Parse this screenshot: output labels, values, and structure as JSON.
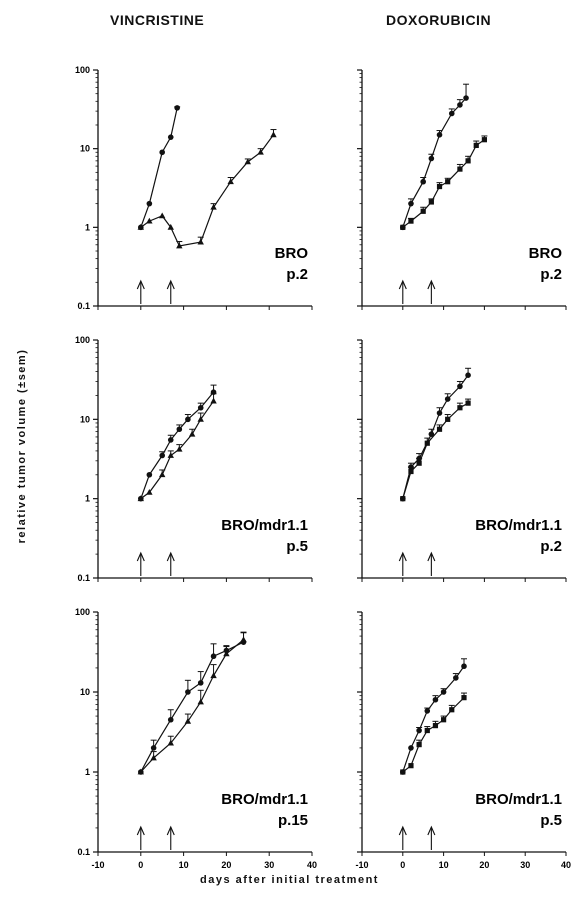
{
  "figure": {
    "titles": [
      "VINCRISTINE",
      "DOXORUBICIN"
    ],
    "ylabel": "relative tumor volume (±sem)",
    "xlabel": "days after initial treatment"
  },
  "chart_data": [
    {
      "type": "line",
      "panel": "vincristine-bro-p2",
      "drug": "VINCRISTINE",
      "label_lines": [
        "BRO",
        "p.2"
      ],
      "y_scale": "log",
      "ylim": [
        0.1,
        100
      ],
      "xlim": [
        -10,
        40
      ],
      "y_ticks": [
        "0.1",
        "1",
        "10",
        "100"
      ],
      "x_ticks": [],
      "treatment_days": [
        0,
        7
      ],
      "series": [
        {
          "marker": "circle",
          "x": [
            0,
            2,
            5,
            7,
            8.5
          ],
          "y": [
            1,
            2,
            9,
            14,
            33
          ],
          "err": [
            0,
            0,
            0,
            0,
            1
          ]
        },
        {
          "marker": "triangle",
          "x": [
            0,
            2,
            5,
            7,
            9,
            14,
            17,
            21,
            25,
            28,
            31
          ],
          "y": [
            1,
            1.2,
            1.4,
            1.0,
            0.58,
            0.65,
            1.8,
            3.8,
            6.8,
            9,
            15
          ],
          "err": [
            0,
            0,
            0,
            0,
            0.08,
            0.1,
            0.2,
            0.5,
            0.6,
            1,
            2.5
          ]
        }
      ]
    },
    {
      "type": "line",
      "panel": "doxorubicin-bro-p2",
      "drug": "DOXORUBICIN",
      "label_lines": [
        "BRO",
        "p.2"
      ],
      "y_scale": "log",
      "ylim": [
        0.1,
        100
      ],
      "xlim": [
        -10,
        40
      ],
      "y_ticks": [],
      "x_ticks": [],
      "treatment_days": [
        0,
        7
      ],
      "series": [
        {
          "marker": "circle",
          "x": [
            0,
            2,
            5,
            7,
            9,
            12,
            14,
            15.5
          ],
          "y": [
            1,
            2,
            3.8,
            7.5,
            15,
            28,
            36,
            44
          ],
          "err": [
            0,
            0.3,
            0.5,
            1,
            2,
            4,
            6,
            22
          ]
        },
        {
          "marker": "square",
          "x": [
            0,
            2,
            5,
            7,
            9,
            11,
            14,
            16,
            18,
            20
          ],
          "y": [
            1,
            1.2,
            1.6,
            2.1,
            3.3,
            3.8,
            5.5,
            7,
            11,
            13
          ],
          "err": [
            0,
            0.1,
            0.2,
            0.2,
            0.4,
            0.4,
            0.8,
            1,
            1.5,
            1.5
          ]
        }
      ]
    },
    {
      "type": "line",
      "panel": "vincristine-bro-mdr11-p5",
      "drug": "VINCRISTINE",
      "label_lines": [
        "BRO/mdr1.1",
        "p.5"
      ],
      "y_scale": "log",
      "ylim": [
        0.1,
        100
      ],
      "xlim": [
        -10,
        40
      ],
      "y_ticks": [
        "0.1",
        "1",
        "10",
        "100"
      ],
      "x_ticks": [],
      "treatment_days": [
        0,
        7
      ],
      "series": [
        {
          "marker": "circle",
          "x": [
            0,
            2,
            5,
            7,
            9,
            11,
            14,
            17
          ],
          "y": [
            1,
            2,
            3.5,
            5.5,
            7.5,
            10,
            14,
            22
          ],
          "err": [
            0,
            0,
            0.4,
            0.8,
            1,
            1.5,
            2,
            5
          ]
        },
        {
          "marker": "triangle",
          "x": [
            0,
            2,
            5,
            7,
            9,
            12,
            14,
            17
          ],
          "y": [
            1,
            1.2,
            2,
            3.5,
            4.2,
            6.5,
            10,
            17
          ],
          "err": [
            0,
            0,
            0.3,
            0.5,
            0.6,
            1,
            2,
            4
          ]
        }
      ]
    },
    {
      "type": "line",
      "panel": "doxorubicin-bro-mdr11-p2",
      "drug": "DOXORUBICIN",
      "label_lines": [
        "BRO/mdr1.1",
        "p.2"
      ],
      "y_scale": "log",
      "ylim": [
        0.1,
        100
      ],
      "xlim": [
        -10,
        40
      ],
      "y_ticks": [],
      "x_ticks": [],
      "treatment_days": [
        0,
        7
      ],
      "series": [
        {
          "marker": "circle",
          "x": [
            0,
            2,
            4,
            7,
            9,
            11,
            14,
            16
          ],
          "y": [
            1,
            2.5,
            3.2,
            6.5,
            12,
            18,
            26,
            36
          ],
          "err": [
            0,
            0.3,
            0.5,
            1,
            2,
            3,
            4,
            8
          ]
        },
        {
          "marker": "square",
          "x": [
            0,
            2,
            4,
            6,
            9,
            11,
            14,
            16
          ],
          "y": [
            1,
            2.2,
            2.8,
            5,
            7.5,
            10,
            14,
            16
          ],
          "err": [
            0,
            0.3,
            0.4,
            0.8,
            1,
            1.5,
            2,
            2
          ]
        }
      ]
    },
    {
      "type": "line",
      "panel": "vincristine-bro-mdr11-p15",
      "drug": "VINCRISTINE",
      "label_lines": [
        "BRO/mdr1.1",
        "p.15"
      ],
      "y_scale": "log",
      "ylim": [
        0.1,
        100
      ],
      "xlim": [
        -10,
        40
      ],
      "y_ticks": [
        "0.1",
        "1",
        "10",
        "100"
      ],
      "x_ticks": [
        "-10",
        "0",
        "10",
        "20",
        "30",
        "40"
      ],
      "treatment_days": [
        0,
        7
      ],
      "series": [
        {
          "marker": "circle",
          "x": [
            0,
            3,
            7,
            11,
            14,
            17,
            20,
            24
          ],
          "y": [
            1,
            2,
            4.5,
            10,
            13,
            28,
            33,
            42
          ],
          "err": [
            0,
            0.5,
            1.5,
            4,
            5,
            12,
            5,
            14
          ]
        },
        {
          "marker": "triangle",
          "x": [
            0,
            3,
            7,
            11,
            14,
            17,
            20,
            24
          ],
          "y": [
            1,
            1.5,
            2.3,
            4.3,
            7.5,
            16,
            30,
            45
          ],
          "err": [
            0,
            0.3,
            0.5,
            1,
            3,
            6,
            7,
            10
          ]
        }
      ]
    },
    {
      "type": "line",
      "panel": "doxorubicin-bro-mdr11-p5",
      "drug": "DOXORUBICIN",
      "label_lines": [
        "BRO/mdr1.1",
        "p.5"
      ],
      "y_scale": "log",
      "ylim": [
        0.1,
        100
      ],
      "xlim": [
        -10,
        40
      ],
      "y_ticks": [],
      "x_ticks": [
        "-10",
        "0",
        "10",
        "20",
        "30",
        "40"
      ],
      "treatment_days": [
        0,
        7
      ],
      "series": [
        {
          "marker": "circle",
          "x": [
            0,
            2,
            4,
            6,
            8,
            10,
            13,
            15
          ],
          "y": [
            1,
            2,
            3.3,
            5.8,
            8,
            10,
            15,
            21
          ],
          "err": [
            0,
            0,
            0.3,
            0.5,
            1,
            1,
            2,
            5
          ]
        },
        {
          "marker": "square",
          "x": [
            0,
            2,
            4,
            6,
            8,
            10,
            12,
            15
          ],
          "y": [
            1,
            1.2,
            2.2,
            3.3,
            3.8,
            4.5,
            6,
            8.5
          ],
          "err": [
            0,
            0,
            0.3,
            0.4,
            0.5,
            0.5,
            0.8,
            1.2
          ]
        }
      ]
    }
  ]
}
